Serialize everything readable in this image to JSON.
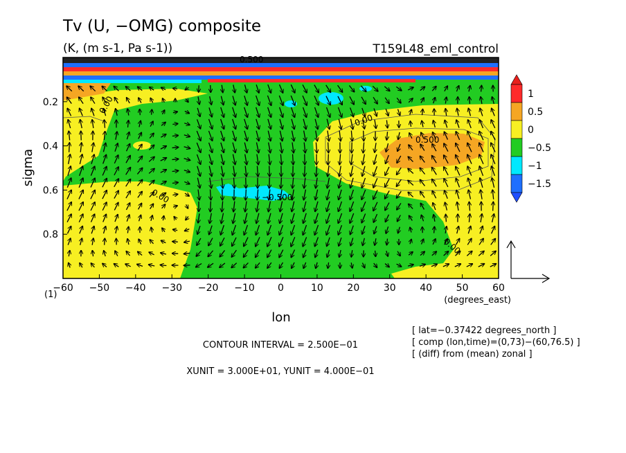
{
  "chart_data": {
    "type": "contour",
    "title": "Tv (U, −OMG) composite",
    "units": "(K, (m s-1, Pa s-1))",
    "experiment": "T159L48_eml_control",
    "xlabel": "lon",
    "xunit_label": "(degrees_east)",
    "ylabel": "sigma",
    "corner_label": "(1)",
    "xlim": [
      -60,
      60
    ],
    "ylim": [
      1.0,
      0.0
    ],
    "x_ticks": [
      "−60",
      "−50",
      "−40",
      "−30",
      "−20",
      "−10",
      "0",
      "10",
      "20",
      "30",
      "40",
      "50",
      "60"
    ],
    "x_tick_values": [
      -60,
      -50,
      -40,
      -30,
      -20,
      -10,
      0,
      10,
      20,
      30,
      40,
      50,
      60
    ],
    "y_ticks": [
      "0.2",
      "0.4",
      "0.6",
      "0.8"
    ],
    "y_tick_values": [
      0.2,
      0.4,
      0.6,
      0.8
    ],
    "colorbar": {
      "labels": [
        "1",
        "0.5",
        "0",
        "−0.5",
        "−1",
        "−1.5"
      ],
      "levels": [
        1,
        0.5,
        0,
        -0.5,
        -1,
        -1.5
      ],
      "colors": [
        "#ff2a2a",
        "#f5a623",
        "#f7ef22",
        "#22cc22",
        "#00e8ff",
        "#1e6fff"
      ],
      "top_arrow_color": "#e8201c",
      "bottom_arrow_color": "#1f4fff"
    },
    "contour_labels": [
      "0.00",
      "0.00",
      "0.00",
      "0.500",
      "−0.500",
      "0.00",
      "0.500"
    ],
    "contour_interval_text": "CONTOUR INTERVAL = 2.500E−01",
    "unit_vector_text": "XUNIT = 3.000E+01, YUNIT = 4.000E−01",
    "info_lines": [
      "[ lat=−0.37422 degrees_north ]",
      "[ comp (lon,time)=(0,73)−(60,76.5) ]",
      "[ (diff) from (mean) zonal ]"
    ]
  }
}
